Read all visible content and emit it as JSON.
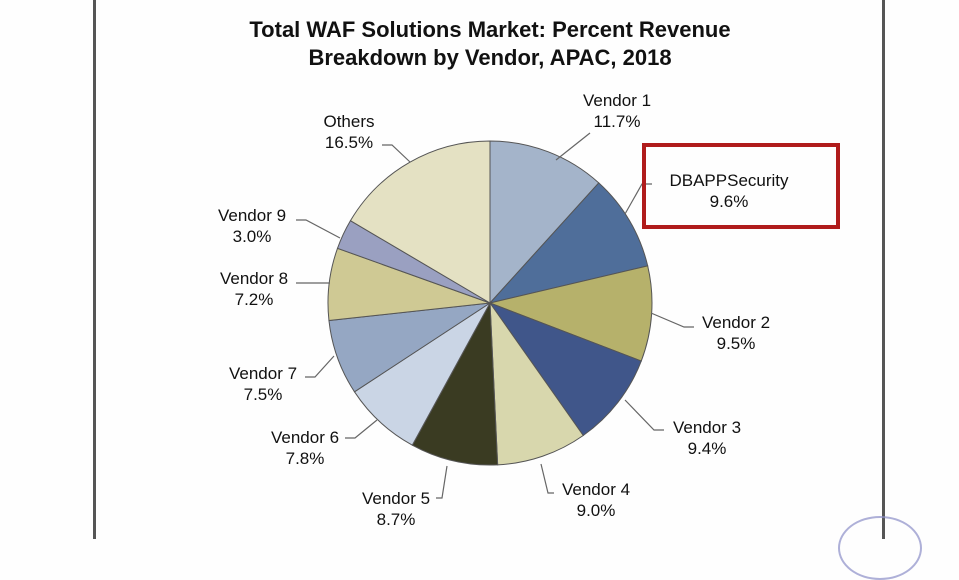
{
  "chart_data": {
    "type": "pie",
    "title": "Total WAF Solutions Market: Percent Revenue Breakdown by Vendor, APAC, 2018",
    "title_lines": [
      "Total WAF Solutions Market: Percent Revenue",
      "Breakdown by Vendor, APAC,  2018"
    ],
    "start": "top",
    "direction": "clockwise",
    "slices": [
      {
        "label": "Vendor 1",
        "value": 11.7,
        "text": "11.7%",
        "color": "#a4b4ca"
      },
      {
        "label": "DBAPPSecurity",
        "value": 9.6,
        "text": "9.6%",
        "color": "#4f6e9a",
        "highlighted": true
      },
      {
        "label": "Vendor 2",
        "value": 9.5,
        "text": "9.5%",
        "color": "#b6b16b"
      },
      {
        "label": "Vendor 3",
        "value": 9.4,
        "text": "9.4%",
        "color": "#40568a"
      },
      {
        "label": "Vendor 4",
        "value": 9.0,
        "text": "9.0%",
        "color": "#d8d7ad"
      },
      {
        "label": "Vendor 5",
        "value": 8.7,
        "text": "8.7%",
        "color": "#3a3b22"
      },
      {
        "label": "Vendor 6",
        "value": 7.8,
        "text": "7.8%",
        "color": "#cad5e5"
      },
      {
        "label": "Vendor 7",
        "value": 7.5,
        "text": "7.5%",
        "color": "#95a7c3"
      },
      {
        "label": "Vendor 8",
        "value": 7.2,
        "text": "7.2%",
        "color": "#cfc994"
      },
      {
        "label": "Vendor 9",
        "value": 3.0,
        "text": "3.0%",
        "color": "#9aa0c1"
      },
      {
        "label": "Others",
        "value": 16.5,
        "text": "16.5%",
        "color": "#e4e1c3"
      }
    ],
    "highlight_color": "#b01c1c"
  }
}
